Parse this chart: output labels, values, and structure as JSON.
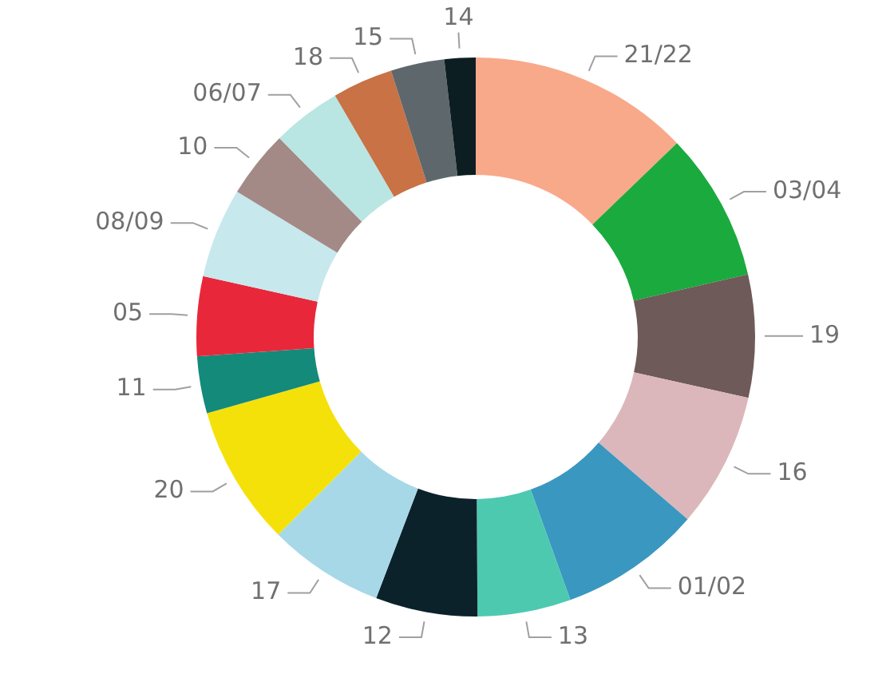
{
  "chart_data": {
    "type": "donut",
    "categories": [
      "21/22",
      "03/04",
      "19",
      "16",
      "01/02",
      "13",
      "12",
      "17",
      "20",
      "11",
      "05",
      "08/09",
      "10",
      "06/07",
      "18",
      "15",
      "14"
    ],
    "values": [
      12.8,
      8.6,
      7.1,
      7.8,
      8.2,
      5.4,
      5.9,
      6.7,
      8.1,
      3.3,
      4.6,
      5.2,
      3.9,
      4,
      3.5,
      3.1,
      1.8
    ],
    "colors": [
      "#f8a98a",
      "#1aaa3e",
      "#6e5a58",
      "#dbb7bb",
      "#3a97c0",
      "#4dc9b0",
      "#0c222b",
      "#a6d8e8",
      "#f5e10a",
      "#138a7a",
      "#e8283a",
      "#c7e8ec",
      "#a38a86",
      "#b9e5e3",
      "#c87245",
      "#5e676c",
      "#0d1e22"
    ],
    "legend": false
  }
}
